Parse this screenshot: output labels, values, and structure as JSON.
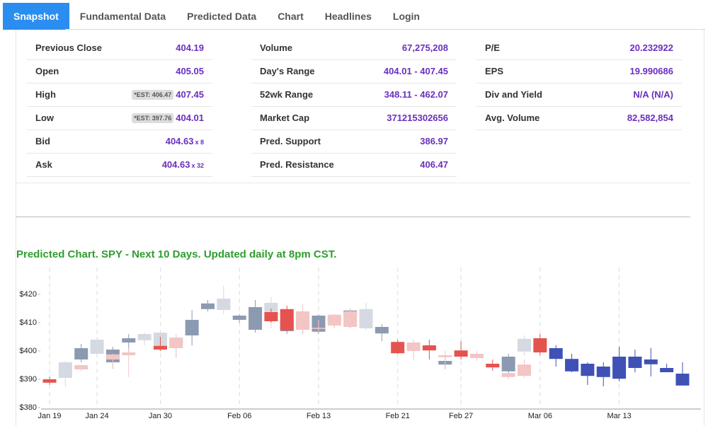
{
  "tabs": [
    "Snapshot",
    "Fundamental Data",
    "Predicted Data",
    "Chart",
    "Headlines",
    "Login"
  ],
  "stats": [
    [
      {
        "label": "Previous Close",
        "value": "404.19"
      },
      {
        "label": "Open",
        "value": "405.05"
      },
      {
        "label": "High",
        "value": "407.45",
        "badge": "*EST: 406.47"
      },
      {
        "label": "Low",
        "value": "404.01",
        "badge": "*EST: 397.76"
      },
      {
        "label": "Bid",
        "value": "404.63",
        "suffix": "x 8"
      },
      {
        "label": "Ask",
        "value": "404.63",
        "suffix": "x 32"
      }
    ],
    [
      {
        "label": "Volume",
        "value": "67,275,208"
      },
      {
        "label": "Day's Range",
        "value": "404.01 - 407.45"
      },
      {
        "label": "52wk Range",
        "value": "348.11 - 462.07"
      },
      {
        "label": "Market Cap",
        "value": "371215302656"
      },
      {
        "label": "Pred. Support",
        "value": "386.97"
      },
      {
        "label": "Pred. Resistance",
        "value": "406.47"
      }
    ],
    [
      {
        "label": "P/E",
        "value": "20.232922"
      },
      {
        "label": "EPS",
        "value": "19.990686"
      },
      {
        "label": "Div and Yield",
        "value": "N/A (N/A)"
      },
      {
        "label": "Avg. Volume",
        "value": "82,582,854"
      }
    ]
  ],
  "chart_data": {
    "type": "candlestick",
    "title": "Predicted Chart. SPY - Next 10 Days. Updated daily at 8pm CST.",
    "categories": [
      "Jan 19",
      null,
      null,
      "Jan 24",
      null,
      null,
      null,
      "Jan 30",
      null,
      null,
      null,
      null,
      "Feb 06",
      null,
      null,
      null,
      null,
      "Feb 13",
      null,
      null,
      null,
      null,
      "Feb 21",
      null,
      null,
      null,
      "Feb 27",
      null,
      null,
      null,
      null,
      "Mar 06",
      null,
      null,
      null,
      null,
      "Mar 13",
      null,
      null,
      null,
      null
    ],
    "ylim": [
      380,
      429.5
    ],
    "yticks": [
      {
        "value": 380,
        "label": "$380"
      },
      {
        "value": 390,
        "label": "$390"
      },
      {
        "value": 400,
        "label": "$400"
      },
      {
        "value": 410,
        "label": "$410"
      },
      {
        "value": 420,
        "label": "$420"
      }
    ],
    "grid": "dashed-x",
    "series": [
      {
        "up_color": "#d5d9e1",
        "down_color": "#8c9ab1",
        "values": [
          null,
          [
            390.5,
            396.5,
            387.3,
            396
          ],
          [
            401,
            402.5,
            396,
            397
          ],
          [
            399,
            405,
            398.5,
            404
          ],
          [
            400.5,
            401.5,
            393.8,
            396
          ],
          [
            404.5,
            406,
            399,
            403
          ],
          [
            403.8,
            406.5,
            402,
            406
          ],
          [
            401.5,
            407,
            400,
            406.5
          ],
          [
            401.5,
            405,
            397.5,
            404.8
          ],
          [
            411,
            414.5,
            402,
            405.5
          ],
          [
            416.8,
            418,
            414,
            414.8
          ],
          [
            414.5,
            423,
            413,
            418.5
          ],
          [
            412.5,
            413,
            410,
            411
          ],
          [
            415.5,
            418,
            406.5,
            407.5
          ],
          [
            414,
            419,
            408,
            417
          ],
          [
            411,
            413,
            406,
            407
          ],
          [
            411.5,
            412,
            406,
            407.8
          ],
          [
            412.5,
            413,
            406,
            406.8
          ],
          [
            411,
            413,
            408,
            412
          ],
          [
            414.3,
            415,
            408,
            412.3
          ],
          [
            408,
            417,
            407.5,
            414.8
          ],
          [
            408.5,
            409.5,
            403.5,
            406.2
          ],
          null,
          null,
          null,
          [
            396.5,
            397.5,
            393.5,
            395.2
          ],
          null,
          null,
          null,
          [
            398,
            399,
            391,
            392.8
          ],
          [
            399.8,
            405.5,
            398.5,
            404.3
          ],
          null,
          null,
          null,
          null,
          null,
          null,
          null,
          null,
          null,
          null
        ]
      },
      {
        "up_color": "#f3c5c5",
        "down_color": "#e5534f",
        "values": [
          [
            390,
            391,
            388,
            388.8
          ],
          null,
          [
            393.5,
            395,
            393,
            395
          ],
          null,
          [
            397,
            399,
            394,
            398.8
          ],
          [
            398.5,
            401,
            390.8,
            399.5
          ],
          null,
          [
            401.8,
            405,
            400,
            400.5
          ],
          [
            401,
            406,
            397.5,
            404.5
          ],
          null,
          null,
          null,
          null,
          null,
          [
            413.8,
            415,
            410,
            410.5
          ],
          [
            414.8,
            416,
            407,
            407.3
          ],
          [
            407.5,
            416.5,
            406,
            414
          ],
          [
            407.8,
            411,
            407,
            408.2
          ],
          [
            409,
            413,
            408,
            412.8
          ],
          [
            408.5,
            415,
            408,
            414
          ],
          null,
          null,
          [
            403.2,
            404,
            399,
            399.2
          ],
          [
            400,
            404,
            397,
            403
          ],
          [
            402,
            404,
            397,
            400.2
          ],
          [
            397.8,
            400,
            393.5,
            398.5
          ],
          [
            400.2,
            403.5,
            397,
            398
          ],
          [
            397.5,
            400,
            396.5,
            399
          ],
          [
            395.5,
            397,
            393,
            394.2
          ],
          [
            390.8,
            392,
            390,
            392.2
          ],
          [
            391.2,
            397,
            390.5,
            395.2
          ],
          [
            404.5,
            406,
            398.5,
            399.5
          ],
          null,
          null,
          null,
          null,
          null,
          null,
          null,
          null,
          null
        ]
      },
      {
        "up_color": "#3f51b5",
        "down_color": "#3f51b5",
        "values": [
          null,
          null,
          null,
          null,
          null,
          null,
          null,
          null,
          null,
          null,
          null,
          null,
          null,
          null,
          null,
          null,
          null,
          null,
          null,
          null,
          null,
          null,
          null,
          null,
          null,
          null,
          null,
          null,
          null,
          null,
          null,
          null,
          [
            401,
            402,
            394.5,
            397.2
          ],
          [
            397.2,
            399,
            392.5,
            392.8
          ],
          [
            395.5,
            396,
            388,
            391.2
          ],
          [
            394.5,
            396,
            387.5,
            390.8
          ],
          [
            398,
            401.5,
            389.3,
            390.2
          ],
          [
            398,
            400.5,
            392.5,
            394
          ],
          [
            397,
            401,
            391,
            395.3
          ],
          [
            394,
            395.5,
            392.5,
            392.5
          ],
          [
            392,
            396,
            387.8,
            387.8
          ]
        ]
      }
    ]
  }
}
